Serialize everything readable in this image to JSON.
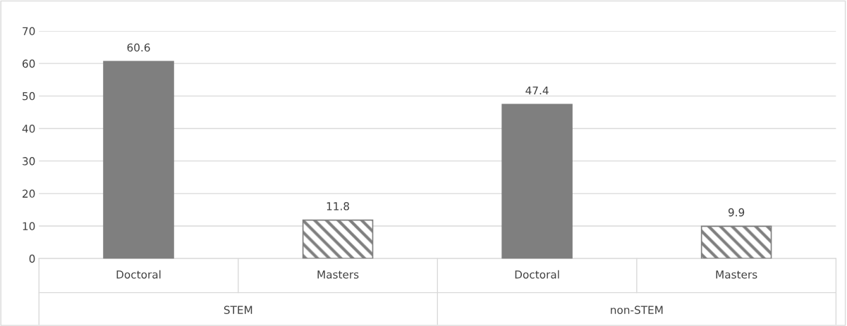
{
  "chart_data": {
    "type": "bar",
    "categories": [
      "Doctoral",
      "Masters",
      "Doctoral",
      "Masters"
    ],
    "series": [
      {
        "color": "#7f7f7f",
        "values": [
          60.6,
          null,
          47.4,
          null
        ]
      },
      {
        "color": "#7f7f7f",
        "values": [
          null,
          11.8,
          null,
          9.9
        ]
      }
    ],
    "annotations": [
      "STEM",
      "non-STEM"
    ],
    "ylim": [
      0,
      70
    ],
    "yticks": [
      0,
      10,
      20,
      30,
      40,
      50,
      60,
      70
    ],
    "grid": "y",
    "data_labels": true
  }
}
